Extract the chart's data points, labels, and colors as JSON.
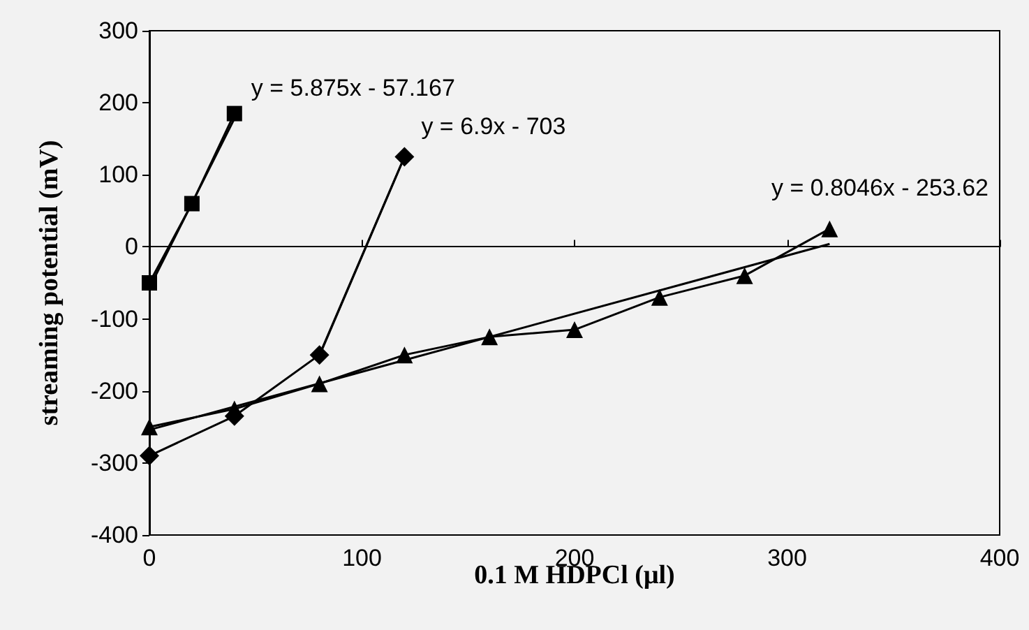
{
  "chart_data": {
    "type": "line",
    "xlabel": "0.1 M HDPCl (μl)",
    "ylabel": "streaming potential (mV)",
    "xlim": [
      0,
      400
    ],
    "xticks": [
      0,
      100,
      200,
      300,
      400
    ],
    "ylim": [
      -400,
      300
    ],
    "yticks": [
      -400,
      -300,
      -200,
      -100,
      0,
      100,
      200,
      300
    ],
    "series": [
      {
        "color": "#000000",
        "marker": "square",
        "x": [
          0,
          20,
          40
        ],
        "values": [
          -50,
          60,
          185
        ]
      },
      {
        "color": "#000000",
        "marker": "diamond",
        "x": [
          0,
          40,
          80,
          120
        ],
        "values": [
          -290,
          -235,
          -150,
          125
        ]
      },
      {
        "color": "#000000",
        "marker": "triangle",
        "x": [
          0,
          40,
          80,
          120,
          160,
          200,
          240,
          280,
          320
        ],
        "values": [
          -250,
          -225,
          -190,
          -150,
          -125,
          -115,
          -70,
          -40,
          25
        ]
      },
      {
        "color": "#000000",
        "marker": "none",
        "x": [
          0,
          40
        ],
        "values": [
          -57,
          178
        ]
      },
      {
        "color": "#000000",
        "marker": "none",
        "x": [
          80,
          120
        ],
        "values": [
          -151,
          125
        ]
      },
      {
        "color": "#000000",
        "marker": "none",
        "x": [
          0,
          320
        ],
        "values": [
          -254,
          4
        ]
      }
    ],
    "annotations": [
      "y = 5.875x - 57.167",
      "y = 6.9x - 703",
      "y = 0.8046x - 253.62"
    ]
  }
}
